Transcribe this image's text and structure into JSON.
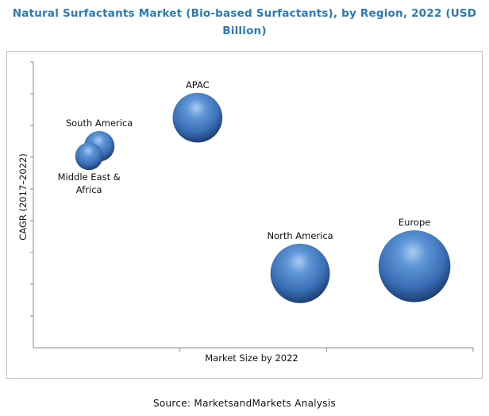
{
  "title_line1": "Natural Surfactants Market (Bio-based Surfactants), by Region, 2022 (USD",
  "title_line2": "Billion)",
  "source": "Source: MarketsandMarkets Analysis",
  "chart_data": {
    "type": "bubble",
    "title": "Natural Surfactants Market (Bio-based Surfactants), by Region, 2022 (USD Billion)",
    "xlabel": "Market Size  by 2022",
    "ylabel": "CAGR (2017–2022)",
    "axis_ticks_labeled": false,
    "grid": false,
    "colors": {
      "bubble": "#3f78c0",
      "bubble_dark": "#1c3f75",
      "bubble_light": "#a9cdf2",
      "title": "#2a7ab8"
    },
    "series": [
      {
        "name": "South America",
        "label_lines": [
          "South America"
        ],
        "x": 0.45,
        "y": 7.05,
        "size": 0.22,
        "label_pos": "above"
      },
      {
        "name": "Middle East & Africa",
        "label_lines": [
          "Middle East &",
          "Africa"
        ],
        "x": 0.38,
        "y": 6.7,
        "size": 0.2,
        "label_pos": "below"
      },
      {
        "name": "APAC",
        "label_lines": [
          "APAC"
        ],
        "x": 1.12,
        "y": 8.05,
        "size": 0.36,
        "label_pos": "above"
      },
      {
        "name": "North America",
        "label_lines": [
          "North America"
        ],
        "x": 1.82,
        "y": 2.6,
        "size": 0.43,
        "label_pos": "above"
      },
      {
        "name": "Europe",
        "label_lines": [
          "Europe"
        ],
        "x": 2.6,
        "y": 2.85,
        "size": 0.52,
        "label_pos": "above"
      }
    ],
    "xlim": [
      0,
      3.0
    ],
    "ylim": [
      0,
      10
    ]
  }
}
